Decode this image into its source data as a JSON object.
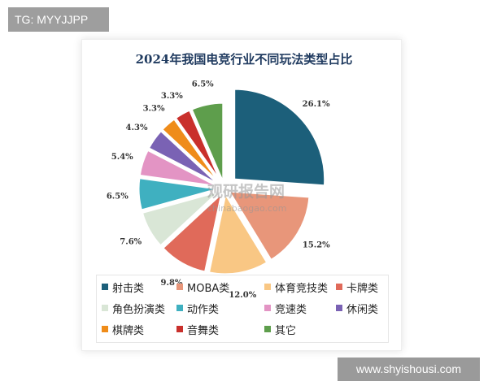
{
  "tags": {
    "top_left": "TG: MYYJJPP",
    "bottom_right": "www.shyishousi.com"
  },
  "watermark": {
    "cn": "观研报告网",
    "en": "chinabaogao.com"
  },
  "chart_data": {
    "type": "pie",
    "title": "2024年我国电竞行业不同玩法类型占比",
    "unit": "%",
    "slices": [
      {
        "name": "射击类",
        "value": 26.1,
        "label": "26.1%",
        "color": "#1c5f7a"
      },
      {
        "name": "MOBA类",
        "value": 15.2,
        "label": "15.2%",
        "color": "#e8967a"
      },
      {
        "name": "体育竞技类",
        "value": 12.0,
        "label": "12.0%",
        "color": "#f9c784"
      },
      {
        "name": "卡牌类",
        "value": 9.8,
        "label": "9.8%",
        "color": "#e06a5a"
      },
      {
        "name": "角色扮演类",
        "value": 7.6,
        "label": "7.6%",
        "color": "#d9e6d6"
      },
      {
        "name": "动作类",
        "value": 6.5,
        "label": "6.5%",
        "color": "#3fb0c0"
      },
      {
        "name": "竞速类",
        "value": 5.4,
        "label": "5.4%",
        "color": "#e394c4"
      },
      {
        "name": "休闲类",
        "value": 4.3,
        "label": "4.3%",
        "color": "#7a62b4"
      },
      {
        "name": "棋牌类",
        "value": 3.3,
        "label": "3.3%",
        "color": "#ef8c1a"
      },
      {
        "name": "音舞类",
        "value": 3.3,
        "label": "3.3%",
        "color": "#c9302c"
      },
      {
        "name": "其它",
        "value": 6.5,
        "label": "6.5%",
        "color": "#5e9e4c"
      }
    ],
    "legend_position": "bottom"
  }
}
